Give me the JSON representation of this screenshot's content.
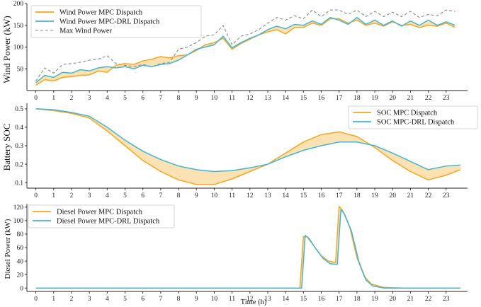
{
  "colors": {
    "mpc": "#F5A623",
    "drl": "#3FB6D8",
    "max": "#888888",
    "fill": "#FBDDA6"
  },
  "chart_data": [
    {
      "type": "line",
      "ylabel": "Wind Power (kW)",
      "xlabel": "",
      "ylim": [
        0,
        200
      ],
      "yticks": [
        50,
        100,
        150,
        200
      ],
      "xlim": [
        -0.5,
        24.2
      ],
      "xticks": [
        0,
        1,
        2,
        3,
        4,
        5,
        6,
        7,
        8,
        9,
        10,
        11,
        12,
        13,
        14,
        15,
        16,
        17,
        18,
        19,
        20,
        21,
        22,
        23
      ],
      "legend": "top-left",
      "fill_between": [
        "Wind Power MPC Dispatch",
        "Wind Power MPC-DRL Dispatch"
      ],
      "x": [
        0,
        0.5,
        1,
        1.5,
        2,
        2.5,
        3,
        3.5,
        4,
        4.5,
        5,
        5.5,
        6,
        6.5,
        7,
        7.5,
        8,
        8.5,
        9,
        9.5,
        10,
        10.5,
        11,
        11.5,
        12,
        12.5,
        13,
        13.5,
        14,
        14.5,
        15,
        15.5,
        16,
        16.5,
        17,
        17.5,
        18,
        18.5,
        19,
        19.5,
        20,
        20.5,
        21,
        21.5,
        22,
        22.5,
        23,
        23.5
      ],
      "series": [
        {
          "name": "Wind Power MPC Dispatch",
          "color_key": "mpc",
          "dash": "solid",
          "values": [
            12,
            25,
            22,
            30,
            32,
            35,
            36,
            45,
            42,
            58,
            62,
            60,
            68,
            72,
            78,
            75,
            80,
            82,
            92,
            105,
            110,
            120,
            95,
            108,
            118,
            128,
            135,
            140,
            130,
            145,
            145,
            155,
            150,
            165,
            165,
            155,
            162,
            150,
            155,
            148,
            158,
            150,
            152,
            145,
            150,
            148,
            155,
            145
          ]
        },
        {
          "name": "Wind Power MPC-DRL Dispatch",
          "color_key": "drl",
          "dash": "solid",
          "values": [
            18,
            35,
            30,
            42,
            40,
            48,
            45,
            52,
            55,
            52,
            55,
            50,
            58,
            55,
            60,
            62,
            70,
            82,
            95,
            100,
            105,
            125,
            98,
            110,
            120,
            128,
            140,
            148,
            142,
            152,
            150,
            160,
            152,
            168,
            162,
            152,
            168,
            152,
            162,
            150,
            160,
            148,
            160,
            150,
            162,
            150,
            158,
            150
          ]
        },
        {
          "name": "Max Wind Power",
          "color_key": "max",
          "dash": "dashed",
          "values": [
            22,
            52,
            40,
            60,
            62,
            65,
            70,
            72,
            80,
            62,
            58,
            55,
            60,
            55,
            62,
            65,
            95,
            100,
            110,
            125,
            128,
            150,
            105,
            125,
            130,
            140,
            155,
            168,
            162,
            172,
            165,
            185,
            170,
            185,
            185,
            175,
            185,
            170,
            182,
            170,
            180,
            170,
            182,
            168,
            175,
            172,
            185,
            182
          ]
        }
      ]
    },
    {
      "type": "line",
      "ylabel": "Battery SOC",
      "xlabel": "",
      "ylim": [
        0.07,
        0.53
      ],
      "yticks": [
        0.1,
        0.2,
        0.3,
        0.4,
        0.5
      ],
      "xlim": [
        -0.5,
        24.2
      ],
      "xticks": [
        0,
        1,
        2,
        3,
        4,
        5,
        6,
        7,
        8,
        9,
        10,
        11,
        12,
        13,
        14,
        15,
        16,
        17,
        18,
        19,
        20,
        21,
        22,
        23
      ],
      "legend": "top-right",
      "fill_between": [
        "SOC MPC Dispatch",
        "SOC MPC-DRL Dispatch"
      ],
      "x": [
        0,
        1,
        2,
        3,
        4,
        5,
        6,
        7,
        8,
        9,
        10,
        11,
        12,
        13,
        14,
        15,
        16,
        17,
        18,
        19,
        20,
        21,
        22,
        23,
        23.8
      ],
      "series": [
        {
          "name": "SOC MPC Dispatch",
          "color_key": "mpc",
          "dash": "solid",
          "values": [
            0.5,
            0.49,
            0.475,
            0.45,
            0.38,
            0.3,
            0.22,
            0.16,
            0.115,
            0.09,
            0.09,
            0.12,
            0.16,
            0.2,
            0.26,
            0.32,
            0.36,
            0.375,
            0.35,
            0.29,
            0.22,
            0.16,
            0.115,
            0.14,
            0.17
          ]
        },
        {
          "name": "SOC MPC-DRL Dispatch",
          "color_key": "drl",
          "dash": "solid",
          "values": [
            0.5,
            0.495,
            0.48,
            0.46,
            0.4,
            0.33,
            0.27,
            0.225,
            0.19,
            0.17,
            0.16,
            0.165,
            0.18,
            0.2,
            0.24,
            0.275,
            0.3,
            0.32,
            0.32,
            0.3,
            0.26,
            0.215,
            0.17,
            0.19,
            0.195
          ]
        }
      ]
    },
    {
      "type": "line",
      "ylabel": "Diesel Power (kW)",
      "xlabel": "Time (h)",
      "ylim": [
        -5,
        125
      ],
      "yticks": [
        0,
        20,
        40,
        60,
        80,
        100,
        120
      ],
      "xlim": [
        -0.5,
        24.2
      ],
      "xticks": [
        0,
        1,
        2,
        3,
        4,
        5,
        6,
        7,
        8,
        9,
        10,
        11,
        12,
        13,
        14,
        15,
        16,
        17,
        18,
        19,
        20,
        21,
        22,
        23
      ],
      "legend": "top-left",
      "fill_between": [
        "Diesel Power MPC Dispatch",
        "Diesel Power MPC-DRL Dispatch"
      ],
      "series": [
        {
          "name": "Diesel Power MPC Dispatch",
          "color_key": "mpc",
          "dash": "solid",
          "x": [
            0,
            14.8,
            15.0,
            15.2,
            15.6,
            16.0,
            16.4,
            16.8,
            17.0,
            17.2,
            17.6,
            18.0,
            18.4,
            18.8,
            19.5,
            20.5,
            23.8
          ],
          "values": [
            0,
            0,
            76,
            76,
            62,
            48,
            40,
            38,
            121,
            115,
            90,
            45,
            18,
            6,
            1,
            0,
            0
          ]
        },
        {
          "name": "Diesel Power MPC-DRL Dispatch",
          "color_key": "drl",
          "dash": "solid",
          "x": [
            0,
            14.9,
            15.1,
            15.3,
            15.7,
            16.1,
            16.5,
            16.9,
            17.1,
            17.3,
            17.7,
            18.1,
            18.5,
            18.9,
            19.5,
            20.5,
            23.8
          ],
          "values": [
            0,
            0,
            78,
            74,
            58,
            44,
            36,
            35,
            116,
            110,
            84,
            40,
            12,
            3,
            0,
            0,
            0
          ]
        }
      ]
    }
  ]
}
